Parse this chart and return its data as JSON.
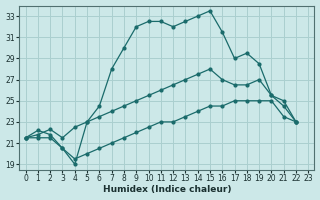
{
  "xlabel": "Humidex (Indice chaleur)",
  "background_color": "#cce8e8",
  "grid_color": "#aacfcf",
  "line_color": "#1a6b6b",
  "xlim": [
    -0.5,
    23.5
  ],
  "ylim": [
    18.5,
    34.0
  ],
  "xtick_labels": [
    "0",
    "1",
    "2",
    "3",
    "4",
    "5",
    "6",
    "7",
    "8",
    "9",
    "10",
    "11",
    "12",
    "13",
    "14",
    "15",
    "16",
    "17",
    "18",
    "19",
    "20",
    "21",
    "22",
    "23"
  ],
  "ytick_labels": [
    "19",
    "21",
    "23",
    "25",
    "27",
    "29",
    "31",
    "33"
  ],
  "ytick_vals": [
    19,
    21,
    23,
    25,
    27,
    29,
    31,
    33
  ],
  "series": {
    "max": [
      21.5,
      22.2,
      21.8,
      20.5,
      19.0,
      23.0,
      24.5,
      28.0,
      30.0,
      32.0,
      32.5,
      32.5,
      32.0,
      32.5,
      33.0,
      33.5,
      31.5,
      29.0,
      29.5,
      28.5,
      25.5,
      24.5,
      23.0,
      null
    ],
    "mean": [
      21.5,
      21.8,
      22.3,
      21.5,
      22.5,
      23.0,
      23.5,
      24.0,
      24.5,
      25.0,
      25.5,
      26.0,
      26.5,
      27.0,
      27.5,
      28.0,
      27.0,
      26.5,
      26.5,
      27.0,
      25.5,
      25.0,
      23.0,
      null
    ],
    "min": [
      21.5,
      21.5,
      21.5,
      20.5,
      19.5,
      20.0,
      20.5,
      21.0,
      21.5,
      22.0,
      22.5,
      23.0,
      23.0,
      23.5,
      24.0,
      24.5,
      24.5,
      25.0,
      25.0,
      25.0,
      25.0,
      23.5,
      23.0,
      null
    ]
  }
}
